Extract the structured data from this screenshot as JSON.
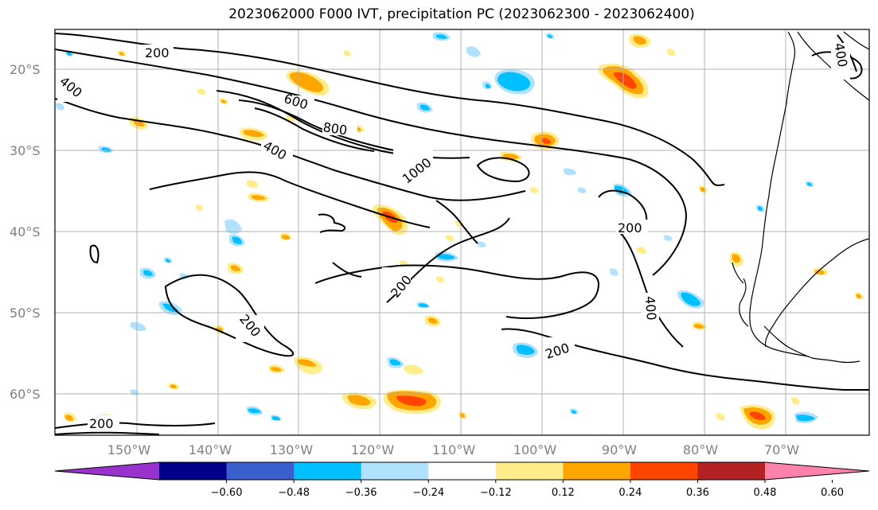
{
  "title": "2023062000 F000 IVT, precipitation PC (2023062300 - 2023062400)",
  "lat_labels": [
    "20°S",
    "30°S",
    "40°S",
    "50°S",
    "60°S"
  ],
  "lon_labels": [
    "150°W",
    "140°W",
    "130°W",
    "120°W",
    "110°W",
    "100°W",
    "90°W",
    "80°W",
    "70°W"
  ],
  "contour_labels": [
    "200",
    "400",
    "600",
    "800",
    "1000",
    "400",
    "200",
    "200",
    "200",
    "400",
    "200",
    "200",
    "400"
  ],
  "colorbar": {
    "ticks": [
      "−0.60",
      "−0.48",
      "−0.36",
      "−0.24",
      "−0.12",
      "0.12",
      "0.24",
      "0.36",
      "0.48",
      "0.60"
    ],
    "colors": [
      "#9932cc",
      "#00008b",
      "#3a5fcd",
      "#00bfff",
      "#b0e2ff",
      "#ffffff",
      "#ffec8b",
      "#ffa500",
      "#ff4500",
      "#b22222",
      "#ff82ab"
    ]
  },
  "colors": {
    "positive_light": "#ffec8b",
    "positive_mid": "#ffa500",
    "positive_high": "#ff4500",
    "negative_light": "#b0e2ff",
    "negative_mid": "#00bfff",
    "grid": "#b0b0b0",
    "contour": "#000000"
  }
}
